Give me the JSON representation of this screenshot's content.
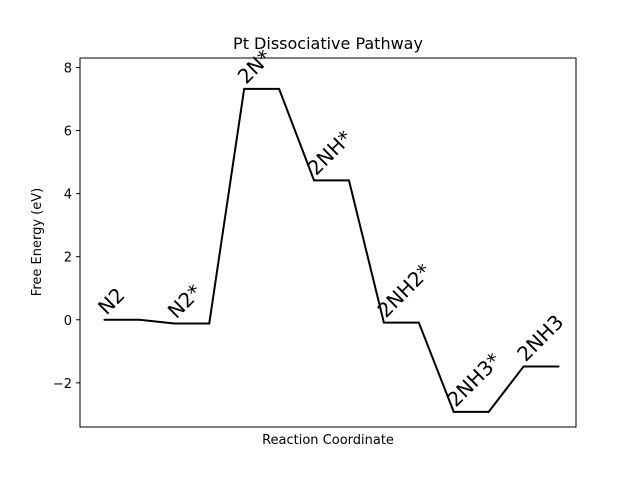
{
  "chart_data": {
    "type": "line",
    "title": "Pt Dissociative Pathway",
    "xlabel": "Reaction Coordinate",
    "ylabel": "Free Energy (eV)",
    "ylim": [
      -3.4,
      8.3
    ],
    "xlim": [
      -0.7,
      13.5
    ],
    "yticks": [
      -2,
      0,
      2,
      4,
      6,
      8
    ],
    "ytick_labels": [
      "−2",
      "0",
      "2",
      "4",
      "6",
      "8"
    ],
    "x_ticks_visible": false,
    "grid": false,
    "line_color": "#000000",
    "series": [
      {
        "steps": [
          {
            "label": "N2",
            "energy": 0.0
          },
          {
            "label": "N2*",
            "energy": -0.12
          },
          {
            "label": "2N*",
            "energy": 7.32
          },
          {
            "label": "2NH*",
            "energy": 4.42
          },
          {
            "label": "2NH2*",
            "energy": -0.09
          },
          {
            "label": "2NH3*",
            "energy": -2.92
          },
          {
            "label": "2NH3",
            "energy": -1.48
          }
        ]
      }
    ]
  }
}
